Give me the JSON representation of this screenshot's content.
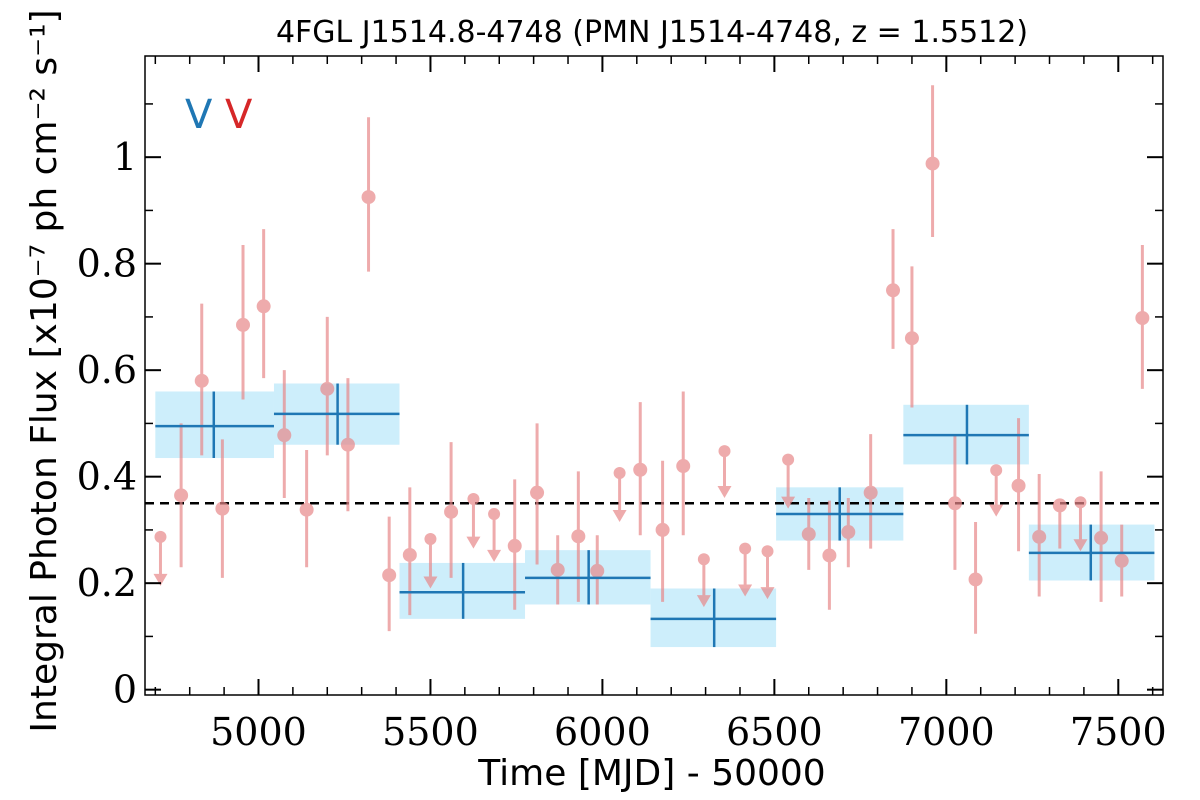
{
  "chart_data": {
    "type": "scatter",
    "title": "4FGL J1514.8-4748 (PMN J1514-4748, z = 1.5512)",
    "xlabel": "Time [MJD] - 50000",
    "ylabel": "Integral Photon Flux [x10⁻⁷ ph cm⁻² s⁻¹]",
    "xlim": [
      4670,
      7630
    ],
    "ylim": [
      -0.01,
      1.19
    ],
    "x_ticks": [
      5000,
      5500,
      6000,
      6500,
      7000,
      7500
    ],
    "x_tick_labels": [
      "5000",
      "5500",
      "6000",
      "6500",
      "7000",
      "7500"
    ],
    "y_ticks": [
      0,
      0.2,
      0.4,
      0.6,
      0.8,
      1.0
    ],
    "y_tick_labels": [
      "0",
      "0.2",
      "0.4",
      "0.6",
      "0.8",
      "1"
    ],
    "grid": false,
    "reference_line": {
      "y": 0.35,
      "style": "dashed",
      "color": "#000000"
    },
    "markers": [
      {
        "label": "V",
        "color": "#1f77b4"
      },
      {
        "label": "V",
        "color": "#d62728"
      }
    ],
    "colors": {
      "points": "#e8888a",
      "points_alpha": 0.7,
      "bins": "#1f77b4",
      "bin_band": "#cdeefb"
    },
    "series": [
      {
        "kind": "detections",
        "points": [
          {
            "x": 4775,
            "y": 0.365,
            "lo": 0.23,
            "hi": 0.5
          },
          {
            "x": 4835,
            "y": 0.58,
            "lo": 0.44,
            "hi": 0.725
          },
          {
            "x": 4895,
            "y": 0.34,
            "lo": 0.21,
            "hi": 0.47
          },
          {
            "x": 4955,
            "y": 0.685,
            "lo": 0.545,
            "hi": 0.835
          },
          {
            "x": 5015,
            "y": 0.72,
            "lo": 0.585,
            "hi": 0.865
          },
          {
            "x": 5075,
            "y": 0.478,
            "lo": 0.36,
            "hi": 0.6
          },
          {
            "x": 5140,
            "y": 0.338,
            "lo": 0.23,
            "hi": 0.45
          },
          {
            "x": 5200,
            "y": 0.565,
            "lo": 0.44,
            "hi": 0.7
          },
          {
            "x": 5260,
            "y": 0.46,
            "lo": 0.335,
            "hi": 0.585
          },
          {
            "x": 5320,
            "y": 0.925,
            "lo": 0.785,
            "hi": 1.075
          },
          {
            "x": 5380,
            "y": 0.215,
            "lo": 0.11,
            "hi": 0.325
          },
          {
            "x": 5440,
            "y": 0.253,
            "lo": 0.14,
            "hi": 0.38
          },
          {
            "x": 5560,
            "y": 0.334,
            "lo": 0.21,
            "hi": 0.465
          },
          {
            "x": 5745,
            "y": 0.27,
            "lo": 0.15,
            "hi": 0.395
          },
          {
            "x": 5810,
            "y": 0.37,
            "lo": 0.235,
            "hi": 0.5
          },
          {
            "x": 5870,
            "y": 0.225,
            "lo": 0.16,
            "hi": 0.29
          },
          {
            "x": 5930,
            "y": 0.288,
            "lo": 0.165,
            "hi": 0.41
          },
          {
            "x": 5985,
            "y": 0.223,
            "lo": 0.16,
            "hi": 0.29
          },
          {
            "x": 6110,
            "y": 0.413,
            "lo": 0.29,
            "hi": 0.54
          },
          {
            "x": 6175,
            "y": 0.3,
            "lo": 0.165,
            "hi": 0.43
          },
          {
            "x": 6235,
            "y": 0.42,
            "lo": 0.29,
            "hi": 0.56
          },
          {
            "x": 6600,
            "y": 0.292,
            "lo": 0.225,
            "hi": 0.36
          },
          {
            "x": 6660,
            "y": 0.252,
            "lo": 0.15,
            "hi": 0.355
          },
          {
            "x": 6715,
            "y": 0.296,
            "lo": 0.23,
            "hi": 0.36
          },
          {
            "x": 6780,
            "y": 0.37,
            "lo": 0.265,
            "hi": 0.48
          },
          {
            "x": 6845,
            "y": 0.75,
            "lo": 0.64,
            "hi": 0.865
          },
          {
            "x": 6900,
            "y": 0.66,
            "lo": 0.53,
            "hi": 0.795
          },
          {
            "x": 6960,
            "y": 0.988,
            "lo": 0.85,
            "hi": 1.135
          },
          {
            "x": 7025,
            "y": 0.35,
            "lo": 0.225,
            "hi": 0.48
          },
          {
            "x": 7085,
            "y": 0.207,
            "lo": 0.105,
            "hi": 0.315
          },
          {
            "x": 7210,
            "y": 0.383,
            "lo": 0.26,
            "hi": 0.51
          },
          {
            "x": 7270,
            "y": 0.287,
            "lo": 0.175,
            "hi": 0.405
          },
          {
            "x": 7330,
            "y": 0.346,
            "lo": 0.265,
            "hi": 0.35
          },
          {
            "x": 7450,
            "y": 0.285,
            "lo": 0.165,
            "hi": 0.41
          },
          {
            "x": 7510,
            "y": 0.242,
            "lo": 0.175,
            "hi": 0.31
          },
          {
            "x": 7570,
            "y": 0.698,
            "lo": 0.565,
            "hi": 0.835
          }
        ]
      },
      {
        "kind": "upper_limits",
        "points": [
          {
            "x": 4715,
            "y": 0.287,
            "end": 0.21
          },
          {
            "x": 5500,
            "y": 0.283,
            "end": 0.205
          },
          {
            "x": 5625,
            "y": 0.358,
            "end": 0.28
          },
          {
            "x": 5685,
            "y": 0.33,
            "end": 0.255
          },
          {
            "x": 6050,
            "y": 0.407,
            "end": 0.33
          },
          {
            "x": 6295,
            "y": 0.245,
            "end": 0.17
          },
          {
            "x": 6355,
            "y": 0.448,
            "end": 0.375
          },
          {
            "x": 6415,
            "y": 0.265,
            "end": 0.19
          },
          {
            "x": 6480,
            "y": 0.26,
            "end": 0.185
          },
          {
            "x": 6540,
            "y": 0.432,
            "end": 0.355
          },
          {
            "x": 7145,
            "y": 0.412,
            "end": 0.34
          },
          {
            "x": 7390,
            "y": 0.352,
            "end": 0.275
          }
        ]
      },
      {
        "kind": "binned",
        "bins": [
          {
            "x0": 4700,
            "x1": 5045,
            "y": 0.495,
            "lo": 0.435,
            "hi": 0.56,
            "xc": 4870
          },
          {
            "x0": 5045,
            "x1": 5410,
            "y": 0.518,
            "lo": 0.46,
            "hi": 0.575,
            "xc": 5230
          },
          {
            "x0": 5410,
            "x1": 5775,
            "y": 0.183,
            "lo": 0.133,
            "hi": 0.238,
            "xc": 5595
          },
          {
            "x0": 5775,
            "x1": 6140,
            "y": 0.21,
            "lo": 0.16,
            "hi": 0.262,
            "xc": 5960
          },
          {
            "x0": 6140,
            "x1": 6505,
            "y": 0.133,
            "lo": 0.08,
            "hi": 0.19,
            "xc": 6325
          },
          {
            "x0": 6505,
            "x1": 6875,
            "y": 0.33,
            "lo": 0.28,
            "hi": 0.38,
            "xc": 6690
          },
          {
            "x0": 6875,
            "x1": 7240,
            "y": 0.478,
            "lo": 0.423,
            "hi": 0.535,
            "xc": 7060
          },
          {
            "x0": 7240,
            "x1": 7605,
            "y": 0.257,
            "lo": 0.205,
            "hi": 0.31,
            "xc": 7420
          }
        ]
      }
    ]
  }
}
